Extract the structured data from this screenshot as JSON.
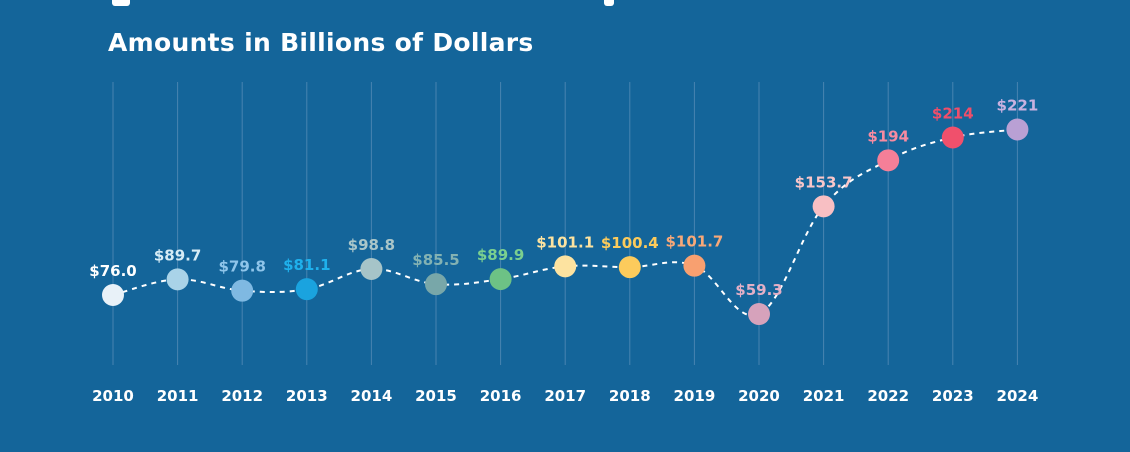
{
  "subtitle": "Amounts in Billions of Dollars",
  "colors": {
    "background": "#14659a",
    "gridline": "#5a8fb8",
    "line": "#ffffff"
  },
  "chart_data": {
    "type": "line",
    "title": "",
    "subtitle": "Amounts in Billions of Dollars",
    "xlabel": "",
    "ylabel": "",
    "grid": "vertical",
    "x": [
      "2010",
      "2011",
      "2012",
      "2013",
      "2014",
      "2015",
      "2016",
      "2017",
      "2018",
      "2019",
      "2020",
      "2021",
      "2022",
      "2023",
      "2024"
    ],
    "values": [
      76.0,
      89.7,
      79.8,
      81.1,
      98.8,
      85.5,
      89.9,
      101.1,
      100.4,
      101.7,
      59.3,
      153.7,
      194,
      214,
      221
    ],
    "data_labels": [
      "$76.0",
      "$89.7",
      "$79.8",
      "$81.1",
      "$98.8",
      "$85.5",
      "$89.9",
      "$101.1",
      "$100.4",
      "$101.7",
      "$59.3",
      "$153.7",
      "$194",
      "$214",
      "$221"
    ],
    "point_colors": [
      "#e8f1f8",
      "#a9d3e8",
      "#7fb9e2",
      "#1aa3df",
      "#a6c4c8",
      "#78a7a9",
      "#6dc285",
      "#fde3a0",
      "#fccb5c",
      "#f8a070",
      "#d6a2bb",
      "#f8bfc3",
      "#f57f98",
      "#f0506c",
      "#b9a0d4"
    ],
    "label_colors": [
      "#ffffff",
      "#d6ecf6",
      "#8fc5ea",
      "#1fb0ec",
      "#aac6c9",
      "#83b2b3",
      "#7bd08f",
      "#fde3a0",
      "#fccb5c",
      "#f8a878",
      "#e3afc6",
      "#f9c6c9",
      "#f78ba1",
      "#f04e6a",
      "#c8b1e0"
    ],
    "ylim": [
      40,
      240
    ]
  }
}
